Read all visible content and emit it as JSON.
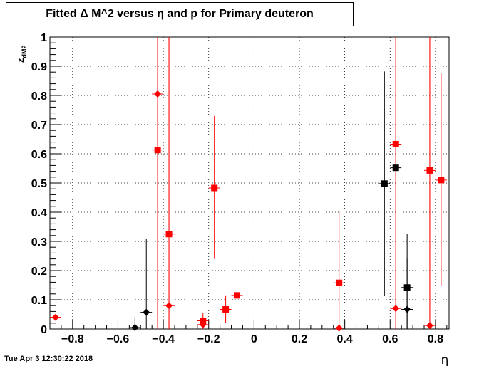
{
  "chart_data": {
    "type": "scatter",
    "title": "Fitted Δ M^2 versus η and p for Primary deuteron",
    "xlabel": "η",
    "ylabel_main": "z",
    "ylabel_sub": "dM2",
    "xlim": [
      -0.9,
      0.86
    ],
    "ylim": [
      0,
      1
    ],
    "x_ticks": [
      -0.8,
      -0.6,
      -0.4,
      -0.2,
      0,
      0.2,
      0.4,
      0.6,
      0.8
    ],
    "x_tick_labels": [
      "−0.8",
      "−0.6",
      "−0.4",
      "−0.2",
      "0",
      "0.2",
      "0.4",
      "0.6",
      "0.8"
    ],
    "y_ticks": [
      0,
      0.1,
      0.2,
      0.3,
      0.4,
      0.5,
      0.6,
      0.7,
      0.8,
      0.9,
      1
    ],
    "y_tick_labels": [
      "0",
      "0.1",
      "0.2",
      "0.3",
      "0.4",
      "0.5",
      "0.6",
      "0.7",
      "0.8",
      "0.9",
      "1"
    ],
    "grid": true,
    "colors": {
      "red": "#ff0000",
      "black": "#000000"
    },
    "series": [
      {
        "color": "red",
        "marker": "square",
        "points": [
          {
            "x": -0.425,
            "y": 0.613,
            "lo": 0.0,
            "hi": 1.0
          },
          {
            "x": -0.375,
            "y": 0.325,
            "lo": 0.0,
            "hi": 1.0
          },
          {
            "x": -0.225,
            "y": 0.028,
            "lo": 0.01,
            "hi": 0.055
          },
          {
            "x": -0.175,
            "y": 0.483,
            "lo": 0.24,
            "hi": 0.73
          },
          {
            "x": -0.125,
            "y": 0.067,
            "lo": 0.02,
            "hi": 0.115
          },
          {
            "x": -0.075,
            "y": 0.115,
            "lo": 0.0,
            "hi": 0.357
          },
          {
            "x": 0.375,
            "y": 0.158,
            "lo": 0.0,
            "hi": 0.405
          },
          {
            "x": 0.625,
            "y": 0.633,
            "lo": 0.0,
            "hi": 1.0
          },
          {
            "x": 0.775,
            "y": 0.543,
            "lo": 0.0,
            "hi": 1.0
          },
          {
            "x": 0.825,
            "y": 0.51,
            "lo": 0.147,
            "hi": 0.875
          }
        ]
      },
      {
        "color": "red",
        "marker": "diamond",
        "points": [
          {
            "x": -0.875,
            "y": 0.04,
            "lo": 0.04,
            "hi": 0.04
          },
          {
            "x": -0.425,
            "y": 0.805,
            "lo": 0.0,
            "hi": 1.0
          },
          {
            "x": -0.375,
            "y": 0.08,
            "lo": 0.0,
            "hi": 1.0
          },
          {
            "x": -0.225,
            "y": 0.015,
            "lo": 0.0,
            "hi": 0.04
          },
          {
            "x": 0.375,
            "y": 0.003,
            "lo": 0.0,
            "hi": 0.01
          },
          {
            "x": 0.625,
            "y": 0.07,
            "lo": 0.0,
            "hi": 1.0
          },
          {
            "x": 0.775,
            "y": 0.012,
            "lo": 0.0,
            "hi": 1.0
          }
        ]
      },
      {
        "color": "black",
        "marker": "square",
        "points": [
          {
            "x": 0.575,
            "y": 0.498,
            "lo": 0.113,
            "hi": 0.882
          },
          {
            "x": 0.625,
            "y": 0.552,
            "lo": 0.552,
            "hi": 0.552
          },
          {
            "x": 0.675,
            "y": 0.142,
            "lo": 0.0,
            "hi": 0.325
          }
        ]
      },
      {
        "color": "black",
        "marker": "diamond",
        "points": [
          {
            "x": -0.525,
            "y": 0.005,
            "lo": 0.0,
            "hi": 0.04
          },
          {
            "x": -0.475,
            "y": 0.057,
            "lo": 0.0,
            "hi": 0.308
          },
          {
            "x": 0.675,
            "y": 0.067,
            "lo": 0.0,
            "hi": 0.24
          }
        ]
      }
    ]
  },
  "timestamp": "Tue Apr  3 12:30:22 2018"
}
